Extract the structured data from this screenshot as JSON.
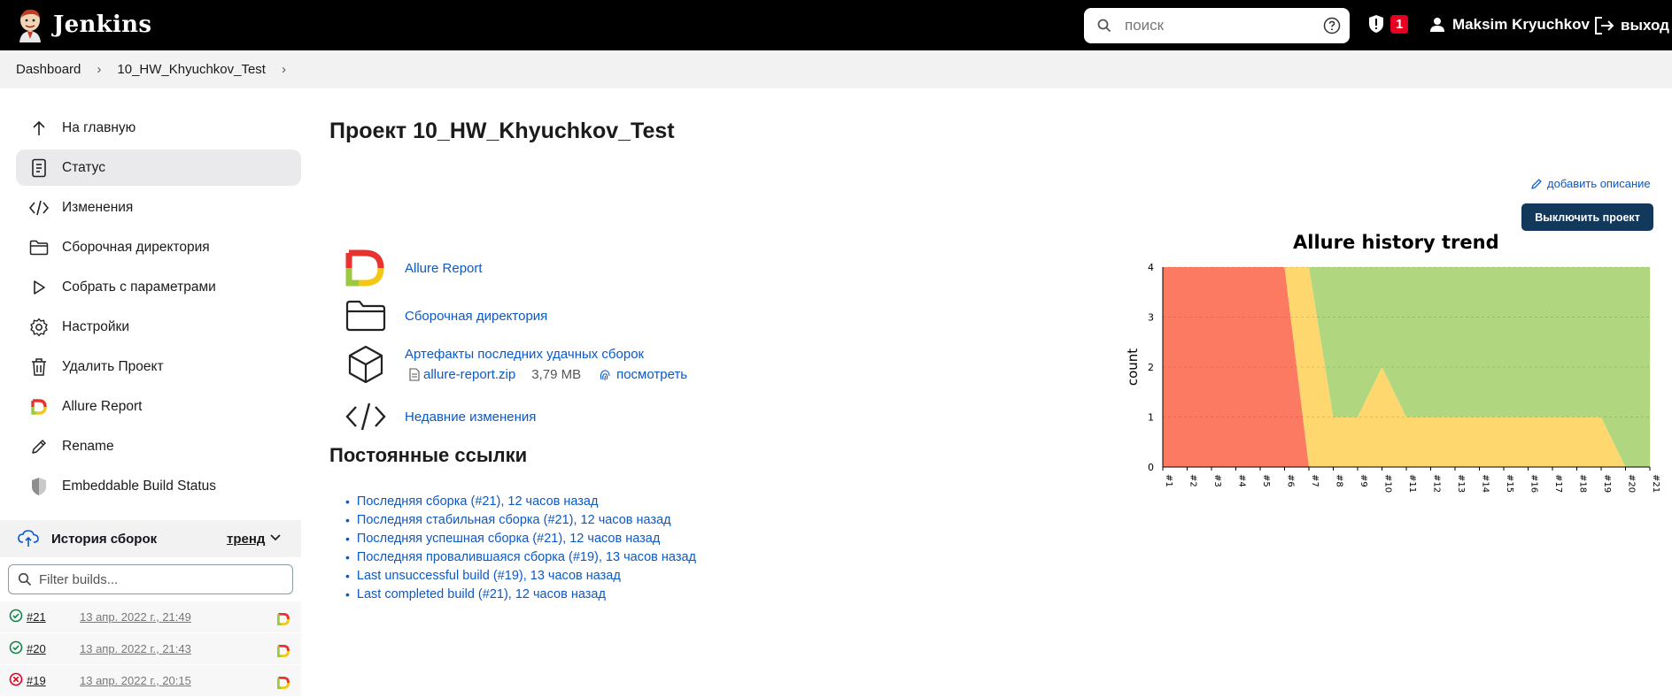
{
  "header": {
    "app_name": "Jenkins",
    "search_placeholder": "поиск",
    "security_count": "1",
    "user_name": "Maksim Kryuchkov",
    "logout_label": "выход"
  },
  "breadcrumb": {
    "items": [
      "Dashboard",
      "10_HW_Khyuchkov_Test"
    ]
  },
  "sidebar": {
    "items": [
      {
        "label": "На главную",
        "icon": "arrow-up-icon"
      },
      {
        "label": "Статус",
        "icon": "document-icon"
      },
      {
        "label": "Изменения",
        "icon": "code-icon"
      },
      {
        "label": "Сборочная директория",
        "icon": "folder-icon"
      },
      {
        "label": "Собрать с параметрами",
        "icon": "play-icon"
      },
      {
        "label": "Настройки",
        "icon": "gear-icon"
      },
      {
        "label": "Удалить Проект",
        "icon": "trash-icon"
      },
      {
        "label": "Allure Report",
        "icon": "allure-icon"
      },
      {
        "label": "Rename",
        "icon": "pencil-icon"
      },
      {
        "label": "Embeddable Build Status",
        "icon": "shield-icon"
      }
    ],
    "active_index": 1
  },
  "build_history": {
    "title": "История сборок",
    "trend_label": "тренд",
    "filter_placeholder": "Filter builds...",
    "builds": [
      {
        "number": "#21",
        "date": "13 апр. 2022 г., 21:49",
        "status": "success"
      },
      {
        "number": "#20",
        "date": "13 апр. 2022 г., 21:43",
        "status": "success"
      },
      {
        "number": "#19",
        "date": "13 апр. 2022 г., 20:15",
        "status": "failed"
      }
    ]
  },
  "main": {
    "title": "Проект 10_HW_Khyuchkov_Test",
    "add_description": "добавить описание",
    "disable_button": "Выключить проект",
    "links": [
      {
        "label": "Allure Report",
        "icon": "allure-icon"
      },
      {
        "label": "Сборочная директория",
        "icon": "folder-icon"
      },
      {
        "label": "Артефакты последних удачных сборок",
        "icon": "package-icon"
      },
      {
        "label": "Недавние изменения",
        "icon": "code-icon"
      }
    ],
    "artifact": {
      "file_name": "allure-report.zip",
      "file_size": "3,79 MB",
      "view_label": "посмотреть"
    },
    "permalinks_title": "Постоянные ссылки",
    "permalinks": [
      "Последняя сборка (#21), 12 часов назад",
      "Последняя стабильная сборка (#21), 12 часов назад",
      "Последняя успешная сборка (#21), 12 часов назад",
      "Последняя провалившаяся сборка (#19), 13 часов назад",
      "Last unsuccessful build (#19), 13 часов назад",
      "Last completed build (#21), 12 часов назад"
    ]
  },
  "chart_data": {
    "type": "area",
    "title": "Allure history trend",
    "ylabel": "count",
    "xlabel": "",
    "ylim": [
      0,
      4
    ],
    "yticks": [
      0,
      1,
      2,
      3,
      4
    ],
    "categories": [
      "#1",
      "#2",
      "#3",
      "#4",
      "#5",
      "#6",
      "#7",
      "#8",
      "#9",
      "#10",
      "#11",
      "#12",
      "#13",
      "#14",
      "#15",
      "#16",
      "#17",
      "#18",
      "#19",
      "#20",
      "#21"
    ],
    "series": [
      {
        "color": "#fd7a62",
        "values": [
          4,
          4,
          4,
          4,
          4,
          4,
          0,
          0,
          0,
          0,
          0,
          0,
          0,
          0,
          0,
          0,
          0,
          0,
          0,
          0,
          0
        ]
      },
      {
        "color": "#fed86f",
        "values": [
          0,
          0,
          0,
          0,
          0,
          0,
          4,
          1,
          1,
          2,
          1,
          1,
          1,
          1,
          1,
          1,
          1,
          1,
          1,
          0,
          0
        ]
      },
      {
        "color": "#b0d780",
        "values": [
          0,
          0,
          0,
          0,
          0,
          0,
          0,
          3,
          3,
          2,
          3,
          3,
          3,
          3,
          3,
          3,
          3,
          3,
          3,
          4,
          4
        ]
      }
    ]
  }
}
